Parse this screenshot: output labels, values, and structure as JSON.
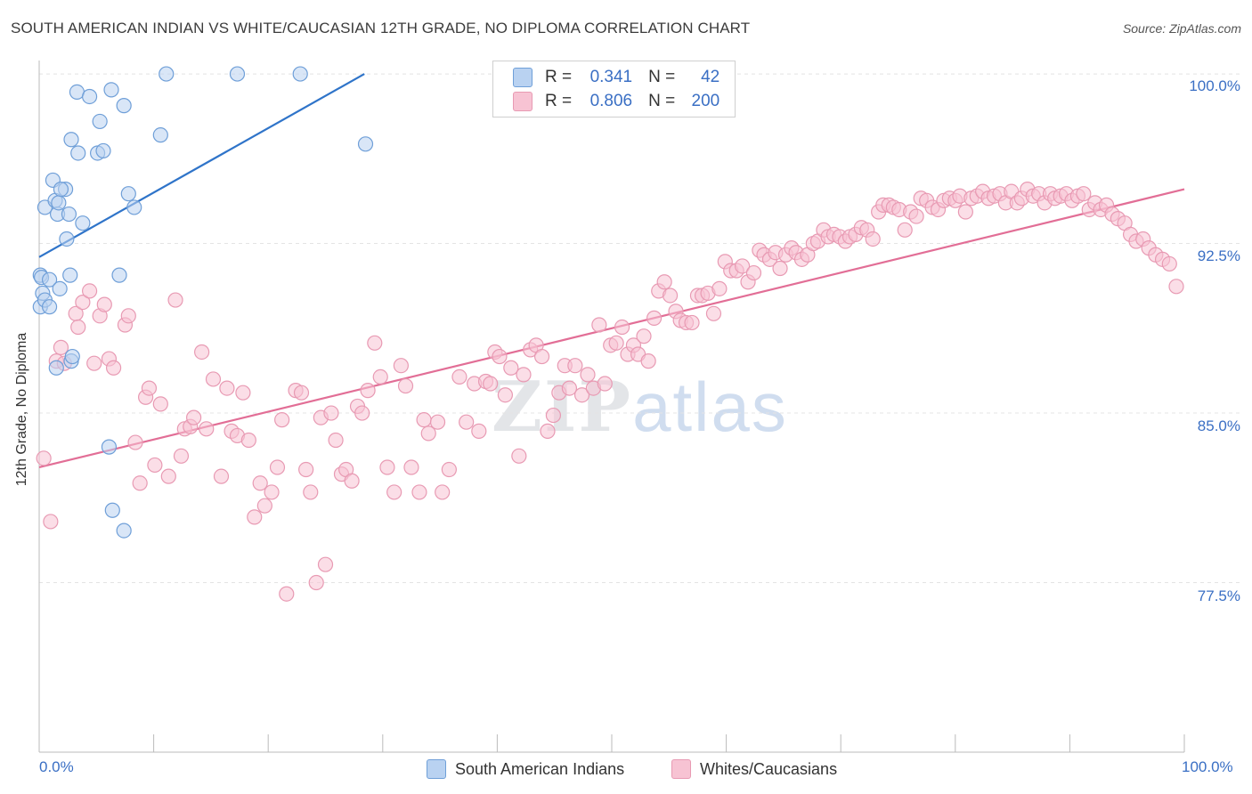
{
  "title": "SOUTH AMERICAN INDIAN VS WHITE/CAUCASIAN 12TH GRADE, NO DIPLOMA CORRELATION CHART",
  "source": "Source: ZipAtlas.com",
  "watermark": {
    "zip": "ZIP",
    "atlas": "atlas"
  },
  "legend": {
    "r_label": "R =",
    "n_label": "N =",
    "rows": [
      {
        "r": "0.341",
        "n": "42"
      },
      {
        "r": "0.806",
        "n": "200"
      }
    ]
  },
  "bottom_legend": [
    "South American Indians",
    "Whites/Caucasians"
  ],
  "colors": {
    "blue_fill": "#b9d2f1",
    "blue_stroke": "#6f9fd8",
    "blue_line": "#2f74c9",
    "pink_fill": "#f7c3d3",
    "pink_stroke": "#e89ab3",
    "pink_line": "#e26e96",
    "grid": "#e4e4e4",
    "tick_text": "#3a6fc4"
  },
  "chart_data": {
    "type": "scatter",
    "title": "SOUTH AMERICAN INDIAN VS WHITE/CAUCASIAN 12TH GRADE, NO DIPLOMA CORRELATION CHART",
    "xlabel": "",
    "ylabel": "12th Grade, No Diploma",
    "xlim": [
      0,
      100
    ],
    "ylim": [
      70.0,
      100.2
    ],
    "x_tick_labels": [
      "0.0%",
      "100.0%"
    ],
    "y_ticks": [
      77.5,
      85.0,
      92.5,
      100.0
    ],
    "y_tick_labels": [
      "77.5%",
      "85.0%",
      "92.5%",
      "100.0%"
    ],
    "grid": true,
    "legend_position": "top-center",
    "series": [
      {
        "name": "South American Indians",
        "r": 0.341,
        "n": 42,
        "trend": [
          [
            0,
            91.9
          ],
          [
            28.4,
            100.0
          ]
        ],
        "points": [
          [
            0.1,
            89.7
          ],
          [
            0.1,
            91.1
          ],
          [
            0.2,
            91.0
          ],
          [
            0.3,
            90.3
          ],
          [
            0.5,
            90.0
          ],
          [
            0.5,
            94.1
          ],
          [
            0.9,
            89.7
          ],
          [
            0.9,
            90.9
          ],
          [
            1.2,
            95.3
          ],
          [
            1.4,
            94.4
          ],
          [
            1.5,
            87.0
          ],
          [
            1.6,
            93.8
          ],
          [
            1.7,
            94.3
          ],
          [
            1.8,
            90.5
          ],
          [
            2.3,
            94.9
          ],
          [
            2.4,
            92.7
          ],
          [
            2.6,
            93.8
          ],
          [
            2.7,
            91.1
          ],
          [
            2.8,
            87.3
          ],
          [
            2.9,
            87.5
          ],
          [
            2.8,
            97.1
          ],
          [
            3.3,
            99.2
          ],
          [
            3.4,
            96.5
          ],
          [
            3.8,
            93.4
          ],
          [
            4.4,
            99.0
          ],
          [
            5.1,
            96.5
          ],
          [
            5.3,
            97.9
          ],
          [
            5.6,
            96.6
          ],
          [
            6.3,
            99.3
          ],
          [
            6.1,
            83.5
          ],
          [
            6.4,
            80.7
          ],
          [
            7.4,
            98.6
          ],
          [
            7.0,
            91.1
          ],
          [
            7.4,
            79.8
          ],
          [
            7.8,
            94.7
          ],
          [
            8.3,
            94.1
          ],
          [
            10.6,
            97.3
          ],
          [
            11.1,
            100.0
          ],
          [
            17.3,
            100.0
          ],
          [
            22.8,
            100.0
          ],
          [
            28.5,
            96.9
          ],
          [
            1.9,
            94.9
          ]
        ]
      },
      {
        "name": "Whites/Caucasians",
        "r": 0.806,
        "n": 200,
        "trend": [
          [
            0,
            82.6
          ],
          [
            100,
            94.9
          ]
        ],
        "points": [
          [
            0.4,
            83.0
          ],
          [
            1.0,
            80.2
          ],
          [
            1.5,
            87.3
          ],
          [
            1.9,
            87.9
          ],
          [
            2.2,
            87.2
          ],
          [
            3.2,
            89.4
          ],
          [
            3.4,
            88.8
          ],
          [
            3.8,
            89.9
          ],
          [
            4.4,
            90.4
          ],
          [
            4.8,
            87.2
          ],
          [
            5.3,
            89.3
          ],
          [
            5.7,
            89.8
          ],
          [
            6.1,
            87.4
          ],
          [
            6.5,
            87.0
          ],
          [
            7.5,
            88.9
          ],
          [
            7.8,
            89.3
          ],
          [
            8.4,
            83.7
          ],
          [
            8.8,
            81.9
          ],
          [
            9.3,
            85.7
          ],
          [
            9.6,
            86.1
          ],
          [
            10.1,
            82.7
          ],
          [
            10.6,
            85.4
          ],
          [
            11.3,
            82.2
          ],
          [
            11.9,
            90.0
          ],
          [
            12.4,
            83.1
          ],
          [
            12.7,
            84.3
          ],
          [
            13.2,
            84.4
          ],
          [
            13.5,
            84.8
          ],
          [
            14.2,
            87.7
          ],
          [
            14.6,
            84.3
          ],
          [
            15.2,
            86.5
          ],
          [
            15.9,
            82.2
          ],
          [
            16.4,
            86.1
          ],
          [
            16.8,
            84.2
          ],
          [
            17.3,
            84.0
          ],
          [
            17.8,
            85.9
          ],
          [
            18.3,
            83.8
          ],
          [
            18.8,
            80.4
          ],
          [
            19.3,
            81.9
          ],
          [
            19.7,
            80.9
          ],
          [
            20.3,
            81.5
          ],
          [
            20.8,
            82.6
          ],
          [
            21.2,
            84.7
          ],
          [
            21.6,
            77.0
          ],
          [
            22.4,
            86.0
          ],
          [
            22.9,
            85.9
          ],
          [
            23.3,
            82.5
          ],
          [
            23.7,
            81.5
          ],
          [
            24.2,
            77.5
          ],
          [
            24.6,
            84.8
          ],
          [
            25.0,
            78.3
          ],
          [
            25.5,
            85.0
          ],
          [
            25.9,
            83.8
          ],
          [
            26.4,
            82.3
          ],
          [
            26.8,
            82.5
          ],
          [
            27.3,
            82.0
          ],
          [
            27.8,
            85.3
          ],
          [
            28.2,
            85.0
          ],
          [
            28.7,
            86.0
          ],
          [
            29.3,
            88.1
          ],
          [
            29.8,
            86.6
          ],
          [
            30.4,
            82.6
          ],
          [
            31.0,
            81.5
          ],
          [
            31.6,
            87.1
          ],
          [
            32.0,
            86.2
          ],
          [
            32.5,
            82.6
          ],
          [
            33.2,
            81.5
          ],
          [
            33.6,
            84.7
          ],
          [
            34.0,
            84.1
          ],
          [
            34.8,
            84.6
          ],
          [
            35.2,
            81.5
          ],
          [
            35.8,
            82.5
          ],
          [
            36.7,
            86.6
          ],
          [
            37.3,
            84.6
          ],
          [
            38.0,
            86.3
          ],
          [
            38.4,
            84.2
          ],
          [
            39.0,
            86.4
          ],
          [
            39.4,
            86.3
          ],
          [
            39.8,
            87.7
          ],
          [
            40.2,
            87.5
          ],
          [
            40.7,
            85.8
          ],
          [
            41.2,
            87.0
          ],
          [
            41.9,
            83.1
          ],
          [
            42.3,
            86.7
          ],
          [
            42.9,
            87.8
          ],
          [
            43.4,
            88.0
          ],
          [
            43.9,
            87.5
          ],
          [
            44.4,
            84.2
          ],
          [
            44.9,
            84.9
          ],
          [
            45.4,
            85.9
          ],
          [
            45.9,
            87.1
          ],
          [
            46.3,
            86.1
          ],
          [
            46.8,
            87.1
          ],
          [
            47.4,
            85.8
          ],
          [
            47.9,
            86.7
          ],
          [
            48.4,
            86.1
          ],
          [
            48.9,
            88.9
          ],
          [
            49.4,
            86.3
          ],
          [
            49.9,
            88.0
          ],
          [
            50.4,
            88.1
          ],
          [
            50.9,
            88.8
          ],
          [
            51.4,
            87.6
          ],
          [
            51.9,
            88.0
          ],
          [
            52.3,
            87.6
          ],
          [
            52.8,
            88.4
          ],
          [
            53.2,
            87.3
          ],
          [
            53.7,
            89.2
          ],
          [
            54.1,
            90.4
          ],
          [
            54.6,
            90.8
          ],
          [
            55.1,
            90.2
          ],
          [
            55.6,
            89.5
          ],
          [
            56.0,
            89.1
          ],
          [
            56.5,
            89.0
          ],
          [
            57.0,
            89.0
          ],
          [
            57.5,
            90.2
          ],
          [
            57.9,
            90.2
          ],
          [
            58.4,
            90.3
          ],
          [
            58.9,
            89.4
          ],
          [
            59.4,
            90.5
          ],
          [
            59.9,
            91.7
          ],
          [
            60.4,
            91.3
          ],
          [
            60.9,
            91.3
          ],
          [
            61.4,
            91.5
          ],
          [
            61.9,
            90.8
          ],
          [
            62.4,
            91.2
          ],
          [
            62.9,
            92.2
          ],
          [
            63.3,
            92.0
          ],
          [
            63.8,
            91.8
          ],
          [
            64.3,
            92.1
          ],
          [
            64.7,
            91.4
          ],
          [
            65.2,
            92.0
          ],
          [
            65.7,
            92.3
          ],
          [
            66.1,
            92.1
          ],
          [
            66.6,
            91.8
          ],
          [
            67.1,
            92.0
          ],
          [
            67.6,
            92.5
          ],
          [
            68.0,
            92.6
          ],
          [
            68.5,
            93.1
          ],
          [
            68.9,
            92.8
          ],
          [
            69.4,
            92.9
          ],
          [
            69.9,
            92.8
          ],
          [
            70.4,
            92.6
          ],
          [
            70.8,
            92.8
          ],
          [
            71.3,
            92.9
          ],
          [
            71.8,
            93.2
          ],
          [
            72.3,
            93.1
          ],
          [
            72.8,
            92.7
          ],
          [
            73.3,
            93.9
          ],
          [
            73.7,
            94.2
          ],
          [
            74.2,
            94.2
          ],
          [
            74.6,
            94.1
          ],
          [
            75.1,
            94.0
          ],
          [
            75.6,
            93.1
          ],
          [
            76.1,
            93.9
          ],
          [
            76.6,
            93.7
          ],
          [
            77.0,
            94.5
          ],
          [
            77.5,
            94.4
          ],
          [
            78.0,
            94.1
          ],
          [
            78.5,
            94.0
          ],
          [
            79.0,
            94.4
          ],
          [
            79.5,
            94.5
          ],
          [
            80.0,
            94.4
          ],
          [
            80.4,
            94.6
          ],
          [
            80.9,
            93.9
          ],
          [
            81.4,
            94.5
          ],
          [
            81.9,
            94.6
          ],
          [
            82.4,
            94.8
          ],
          [
            82.9,
            94.5
          ],
          [
            83.4,
            94.6
          ],
          [
            83.9,
            94.7
          ],
          [
            84.4,
            94.3
          ],
          [
            84.9,
            94.8
          ],
          [
            85.4,
            94.3
          ],
          [
            85.8,
            94.5
          ],
          [
            86.3,
            94.9
          ],
          [
            86.8,
            94.6
          ],
          [
            87.3,
            94.7
          ],
          [
            87.8,
            94.3
          ],
          [
            88.3,
            94.7
          ],
          [
            88.7,
            94.5
          ],
          [
            89.2,
            94.6
          ],
          [
            89.7,
            94.7
          ],
          [
            90.2,
            94.4
          ],
          [
            90.7,
            94.6
          ],
          [
            91.2,
            94.7
          ],
          [
            91.7,
            94.0
          ],
          [
            92.2,
            94.3
          ],
          [
            92.7,
            94.0
          ],
          [
            93.2,
            94.2
          ],
          [
            93.7,
            93.8
          ],
          [
            94.2,
            93.6
          ],
          [
            94.8,
            93.4
          ],
          [
            95.3,
            92.9
          ],
          [
            95.8,
            92.6
          ],
          [
            96.4,
            92.7
          ],
          [
            96.9,
            92.3
          ],
          [
            97.5,
            92.0
          ],
          [
            98.1,
            91.8
          ],
          [
            98.7,
            91.6
          ],
          [
            99.3,
            90.6
          ]
        ]
      }
    ]
  }
}
